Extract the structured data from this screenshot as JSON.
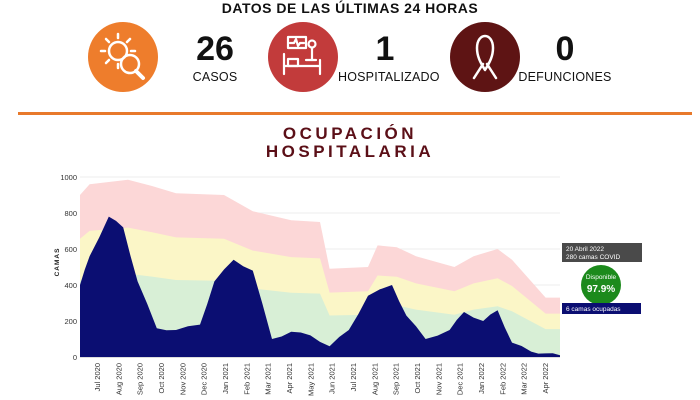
{
  "header": {
    "title": "DATOS DE LAS ÚLTIMAS 24 HORAS"
  },
  "stats": [
    {
      "value": "26",
      "label": "CASOS",
      "icon": "virus-magnifier-icon",
      "color": "#ee7d2c"
    },
    {
      "value": "1",
      "label": "HOSPITALIZADO",
      "icon": "hospital-bed-icon",
      "color": "#c23b3b"
    },
    {
      "value": "0",
      "label": "DEFUNCIONES",
      "icon": "ribbon-icon",
      "color": "#5e1414"
    }
  ],
  "colors": {
    "accent": "#e8792b",
    "title": "#5b0f17",
    "occupied": "#0b0e72",
    "available": "#1c8a1c"
  },
  "chart_title": {
    "line1": "OCUPACIÓN",
    "line2": "HOSPITALARIA"
  },
  "chart_data": {
    "type": "area",
    "ylabel": "CAMAS",
    "ylim": [
      0,
      1000
    ],
    "yticks": [
      "0",
      "200",
      "400",
      "600",
      "800",
      "1000"
    ],
    "xticks": [
      "Jul 2020",
      "Aug 2020",
      "Sep 2020",
      "Oct 2020",
      "Nov 2020",
      "Dec 2020",
      "Jan 2021",
      "Feb 2021",
      "Mar 2021",
      "Apr 2021",
      "May 2021",
      "Jun 2021",
      "Jul 2021",
      "Aug 2021",
      "Sep 2021",
      "Oct 2021",
      "Nov 2021",
      "Dec 2021",
      "Jan 2022",
      "Feb 2022",
      "Mar 2022",
      "Apr 2022"
    ],
    "series": [
      {
        "name": "camas ocupadas",
        "color": "#0b0e72",
        "x": [
          0,
          0.02,
          0.06,
          0.09,
          0.12,
          0.16,
          0.2,
          0.25,
          0.28,
          0.32,
          0.36,
          0.4,
          0.44,
          0.48,
          0.52,
          0.56,
          0.6,
          0.65,
          0.68,
          0.72,
          0.77,
          0.8,
          0.84,
          0.87,
          0.9,
          0.94,
          0.97,
          1.0
        ],
        "values": [
          400,
          560,
          780,
          720,
          420,
          160,
          150,
          180,
          420,
          540,
          480,
          100,
          140,
          120,
          60,
          150,
          340,
          400,
          230,
          100,
          150,
          250,
          200,
          260,
          80,
          30,
          20,
          10
        ]
      }
    ],
    "annotations": {
      "date": "20 Abril 2022",
      "capacity": "280 camas COVID",
      "available_label": "Disponible",
      "available_pct": "97.9%",
      "occupied": "6 camas ocupadas"
    }
  }
}
